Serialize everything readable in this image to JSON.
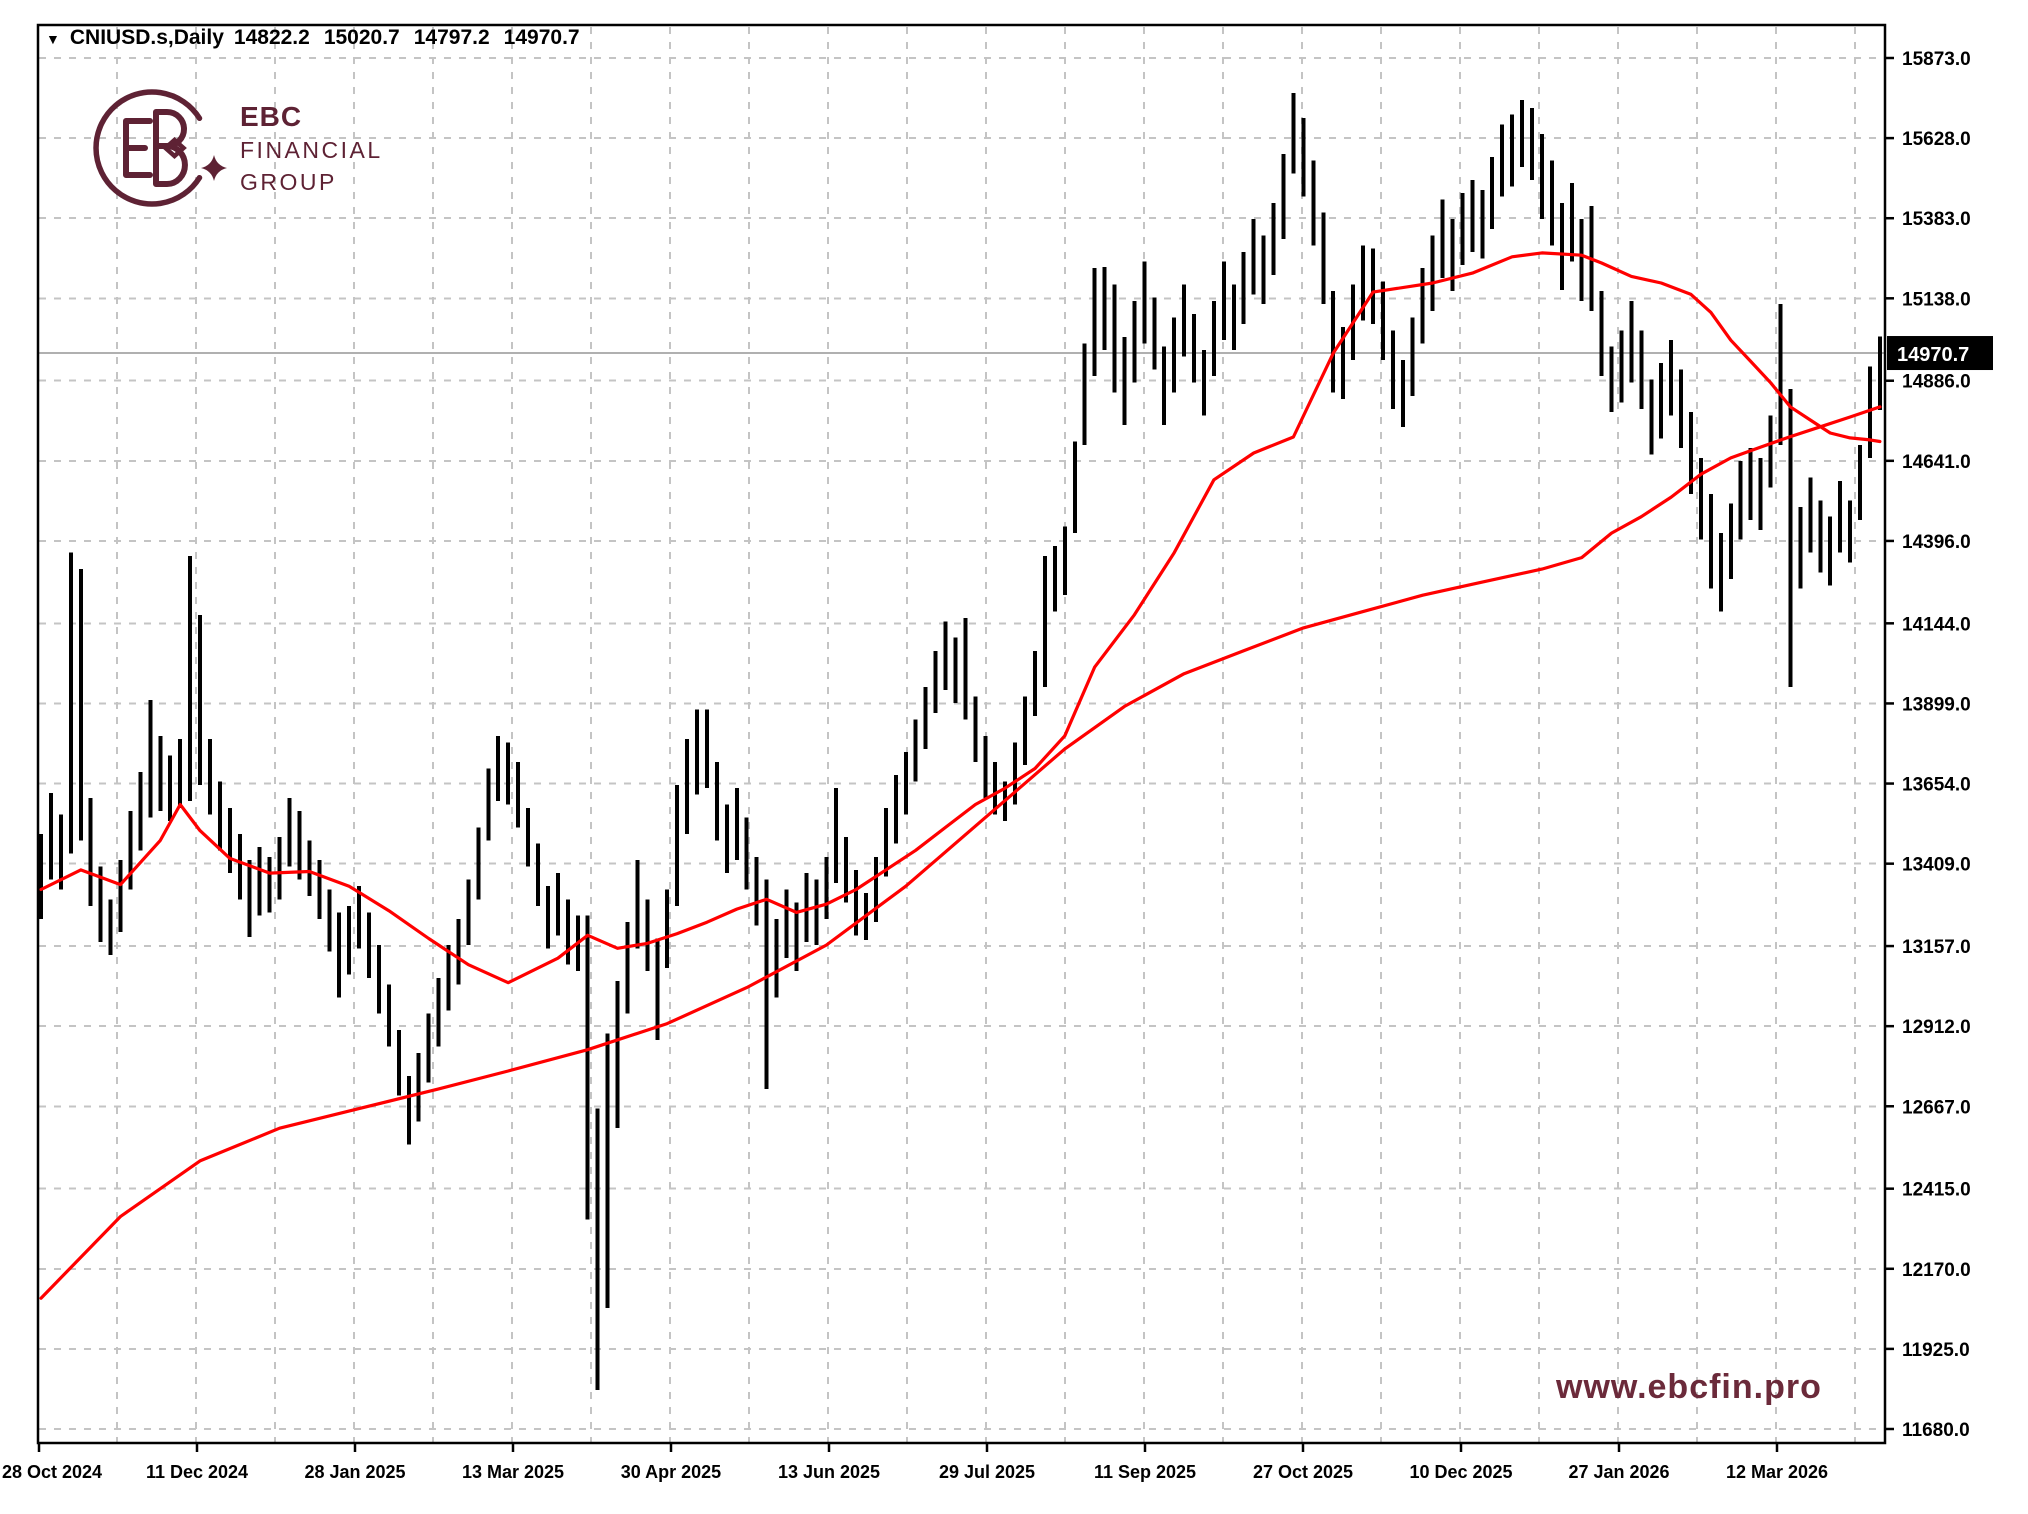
{
  "header": {
    "collapse_icon": "triangle-down",
    "symbol": "CNIUSD.s,Daily",
    "open": "14822.2",
    "high": "15020.7",
    "low": "14797.2",
    "close": "14970.7"
  },
  "logo": {
    "monogram": "EB",
    "line1": "EBC",
    "line2": "FINANCIAL",
    "line3": "GROUP",
    "color": "#5E2234"
  },
  "watermark": {
    "text": "www.ebcfin.pro",
    "color": "#6B2A3A"
  },
  "chart_data": {
    "type": "bar",
    "title": "CNIUSD.s Daily OHLC bar chart with two red moving averages",
    "symbol": "CNIUSD.s",
    "timeframe": "Daily",
    "current_bar": {
      "open": 14822.2,
      "high": 15020.7,
      "low": 14797.2,
      "close": 14970.7
    },
    "current_price": 14970.7,
    "current_price_label": "14970.7",
    "grid": "dashed",
    "legend_position": "none",
    "ylim": [
      11680,
      15873
    ],
    "y_axis": {
      "labels": [
        "15873.0",
        "15628.0",
        "15383.0",
        "15138.0",
        "14886.0",
        "14641.0",
        "14396.0",
        "14144.0",
        "13899.0",
        "13654.0",
        "13409.0",
        "13157.0",
        "12912.0",
        "12667.0",
        "12415.0",
        "12170.0",
        "11925.0",
        "11680.0"
      ]
    },
    "x_axis": {
      "labels": [
        "28 Oct 2024",
        "11 Dec 2024",
        "28 Jan 2025",
        "13 Mar 2025",
        "30 Apr 2025",
        "13 Jun 2025",
        "29 Jul 2025",
        "11 Sep 2025",
        "27 Oct 2025",
        "10 Dec 2025",
        "27 Jan 2026",
        "12 Mar 2026"
      ]
    },
    "bars_high_low": [
      [
        13500,
        13240
      ],
      [
        13625,
        13360
      ],
      [
        13560,
        13330
      ],
      [
        14360,
        13440
      ],
      [
        14310,
        13480
      ],
      [
        13610,
        13280
      ],
      [
        13400,
        13170
      ],
      [
        13300,
        13130
      ],
      [
        13420,
        13200
      ],
      [
        13570,
        13330
      ],
      [
        13690,
        13450
      ],
      [
        13910,
        13550
      ],
      [
        13800,
        13570
      ],
      [
        13740,
        13540
      ],
      [
        13790,
        13580
      ],
      [
        14350,
        13600
      ],
      [
        14170,
        13650
      ],
      [
        13790,
        13560
      ],
      [
        13660,
        13450
      ],
      [
        13580,
        13380
      ],
      [
        13500,
        13300
      ],
      [
        13420,
        13185
      ],
      [
        13460,
        13250
      ],
      [
        13430,
        13260
      ],
      [
        13490,
        13300
      ],
      [
        13610,
        13400
      ],
      [
        13570,
        13360
      ],
      [
        13480,
        13310
      ],
      [
        13420,
        13240
      ],
      [
        13330,
        13140
      ],
      [
        13260,
        13000
      ],
      [
        13280,
        13070
      ],
      [
        13340,
        13150
      ],
      [
        13260,
        13060
      ],
      [
        13160,
        12950
      ],
      [
        13040,
        12850
      ],
      [
        12900,
        12700
      ],
      [
        12760,
        12550
      ],
      [
        12830,
        12620
      ],
      [
        12950,
        12740
      ],
      [
        13060,
        12850
      ],
      [
        13160,
        12960
      ],
      [
        13240,
        13040
      ],
      [
        13360,
        13160
      ],
      [
        13520,
        13300
      ],
      [
        13700,
        13480
      ],
      [
        13800,
        13600
      ],
      [
        13780,
        13590
      ],
      [
        13720,
        13520
      ],
      [
        13580,
        13400
      ],
      [
        13470,
        13280
      ],
      [
        13340,
        13150
      ],
      [
        13380,
        13190
      ],
      [
        13300,
        13100
      ],
      [
        13250,
        13080
      ],
      [
        13250,
        12320
      ],
      [
        12660,
        11800
      ],
      [
        12890,
        12050
      ],
      [
        13050,
        12600
      ],
      [
        13230,
        12950
      ],
      [
        13420,
        13150
      ],
      [
        13300,
        13080
      ],
      [
        13180,
        12870
      ],
      [
        13330,
        13090
      ],
      [
        13650,
        13280
      ],
      [
        13790,
        13500
      ],
      [
        13880,
        13620
      ],
      [
        13880,
        13640
      ],
      [
        13720,
        13480
      ],
      [
        13590,
        13380
      ],
      [
        13640,
        13420
      ],
      [
        13550,
        13330
      ],
      [
        13430,
        13220
      ],
      [
        13360,
        12720
      ],
      [
        13240,
        13000
      ],
      [
        13330,
        13120
      ],
      [
        13290,
        13080
      ],
      [
        13380,
        13170
      ],
      [
        13360,
        13160
      ],
      [
        13430,
        13240
      ],
      [
        13640,
        13350
      ],
      [
        13490,
        13290
      ],
      [
        13390,
        13190
      ],
      [
        13320,
        13175
      ],
      [
        13430,
        13230
      ],
      [
        13580,
        13370
      ],
      [
        13680,
        13470
      ],
      [
        13750,
        13560
      ],
      [
        13850,
        13660
      ],
      [
        13950,
        13760
      ],
      [
        14060,
        13870
      ],
      [
        14150,
        13940
      ],
      [
        14100,
        13900
      ],
      [
        14160,
        13850
      ],
      [
        13920,
        13720
      ],
      [
        13800,
        13610
      ],
      [
        13720,
        13560
      ],
      [
        13660,
        13540
      ],
      [
        13780,
        13590
      ],
      [
        13920,
        13710
      ],
      [
        14060,
        13860
      ],
      [
        14350,
        13950
      ],
      [
        14380,
        14180
      ],
      [
        14440,
        14230
      ],
      [
        14700,
        14420
      ],
      [
        15000,
        14690
      ],
      [
        15230,
        14900
      ],
      [
        15234,
        14980
      ],
      [
        15180,
        14850
      ],
      [
        15020,
        14750
      ],
      [
        15130,
        14880
      ],
      [
        15250,
        15000
      ],
      [
        15140,
        14920
      ],
      [
        14990,
        14750
      ],
      [
        15080,
        14850
      ],
      [
        15180,
        14960
      ],
      [
        15090,
        14880
      ],
      [
        14980,
        14780
      ],
      [
        15130,
        14900
      ],
      [
        15250,
        15010
      ],
      [
        15180,
        14980
      ],
      [
        15280,
        15060
      ],
      [
        15380,
        15150
      ],
      [
        15330,
        15120
      ],
      [
        15430,
        15210
      ],
      [
        15580,
        15320
      ],
      [
        15766,
        15520
      ],
      [
        15690,
        15450
      ],
      [
        15560,
        15300
      ],
      [
        15400,
        15120
      ],
      [
        15160,
        14850
      ],
      [
        15050,
        14830
      ],
      [
        15180,
        14950
      ],
      [
        15300,
        15070
      ],
      [
        15290,
        15060
      ],
      [
        15190,
        14950
      ],
      [
        15040,
        14800
      ],
      [
        14950,
        14745
      ],
      [
        15080,
        14840
      ],
      [
        15230,
        15000
      ],
      [
        15330,
        15100
      ],
      [
        15440,
        15200
      ],
      [
        15380,
        15160
      ],
      [
        15460,
        15240
      ],
      [
        15500,
        15280
      ],
      [
        15470,
        15260
      ],
      [
        15570,
        15350
      ],
      [
        15670,
        15450
      ],
      [
        15700,
        15480
      ],
      [
        15745,
        15540
      ],
      [
        15720,
        15500
      ],
      [
        15640,
        15380
      ],
      [
        15560,
        15300
      ],
      [
        15430,
        15164
      ],
      [
        15490,
        15250
      ],
      [
        15380,
        15130
      ],
      [
        15420,
        15100
      ],
      [
        15160,
        14900
      ],
      [
        14990,
        14790
      ],
      [
        15040,
        14820
      ],
      [
        15130,
        14880
      ],
      [
        15040,
        14800
      ],
      [
        14890,
        14660
      ],
      [
        14940,
        14710
      ],
      [
        15010,
        14780
      ],
      [
        14920,
        14680
      ],
      [
        14790,
        14540
      ],
      [
        14650,
        14400
      ],
      [
        14540,
        14250
      ],
      [
        14420,
        14180
      ],
      [
        14510,
        14280
      ],
      [
        14640,
        14400
      ],
      [
        14680,
        14460
      ],
      [
        14650,
        14430
      ],
      [
        14780,
        14560
      ],
      [
        15120,
        14690
      ],
      [
        14860,
        13950
      ],
      [
        14500,
        14250
      ],
      [
        14590,
        14360
      ],
      [
        14520,
        14300
      ],
      [
        14470,
        14260
      ],
      [
        14580,
        14360
      ],
      [
        14520,
        14330
      ],
      [
        14690,
        14460
      ],
      [
        14930,
        14650
      ],
      [
        15021,
        14797
      ]
    ],
    "ma_fast_waypoints": [
      [
        0,
        13330
      ],
      [
        4,
        13390
      ],
      [
        8,
        13345
      ],
      [
        12,
        13480
      ],
      [
        14,
        13590
      ],
      [
        16,
        13510
      ],
      [
        19,
        13425
      ],
      [
        23,
        13380
      ],
      [
        27,
        13385
      ],
      [
        31,
        13340
      ],
      [
        35,
        13265
      ],
      [
        39,
        13180
      ],
      [
        43,
        13100
      ],
      [
        47,
        13045
      ],
      [
        52,
        13120
      ],
      [
        55,
        13190
      ],
      [
        58,
        13150
      ],
      [
        61,
        13165
      ],
      [
        64,
        13195
      ],
      [
        67,
        13230
      ],
      [
        70,
        13270
      ],
      [
        73,
        13300
      ],
      [
        76,
        13260
      ],
      [
        79,
        13285
      ],
      [
        82,
        13330
      ],
      [
        85,
        13390
      ],
      [
        88,
        13450
      ],
      [
        91,
        13520
      ],
      [
        94,
        13590
      ],
      [
        97,
        13640
      ],
      [
        100,
        13700
      ],
      [
        103,
        13800
      ],
      [
        106,
        14010
      ],
      [
        110,
        14170
      ],
      [
        114,
        14360
      ],
      [
        118,
        14583
      ],
      [
        122,
        14665
      ],
      [
        126,
        14714
      ],
      [
        130,
        14970
      ],
      [
        134,
        15157
      ],
      [
        140,
        15185
      ],
      [
        144,
        15215
      ],
      [
        148,
        15265
      ],
      [
        151,
        15277
      ],
      [
        155,
        15270
      ],
      [
        157,
        15246
      ],
      [
        160,
        15205
      ],
      [
        163,
        15185
      ],
      [
        166,
        15150
      ],
      [
        168,
        15095
      ],
      [
        170,
        15010
      ],
      [
        172,
        14945
      ],
      [
        174,
        14880
      ],
      [
        176,
        14806
      ],
      [
        178,
        14766
      ],
      [
        180,
        14726
      ],
      [
        182,
        14711
      ],
      [
        184,
        14705
      ],
      [
        185,
        14700
      ]
    ],
    "ma_slow_waypoints": [
      [
        0,
        12080
      ],
      [
        8,
        12330
      ],
      [
        16,
        12500
      ],
      [
        24,
        12600
      ],
      [
        32,
        12660
      ],
      [
        40,
        12720
      ],
      [
        47,
        12775
      ],
      [
        55,
        12840
      ],
      [
        63,
        12920
      ],
      [
        71,
        13030
      ],
      [
        79,
        13160
      ],
      [
        87,
        13340
      ],
      [
        95,
        13550
      ],
      [
        103,
        13760
      ],
      [
        109,
        13890
      ],
      [
        115,
        13990
      ],
      [
        121,
        14060
      ],
      [
        127,
        14130
      ],
      [
        133,
        14180
      ],
      [
        139,
        14230
      ],
      [
        145,
        14270
      ],
      [
        151,
        14310
      ],
      [
        155,
        14345
      ],
      [
        158,
        14420
      ],
      [
        161,
        14470
      ],
      [
        164,
        14530
      ],
      [
        167,
        14600
      ],
      [
        170,
        14650
      ],
      [
        173,
        14683
      ],
      [
        176,
        14715
      ],
      [
        179,
        14745
      ],
      [
        182,
        14775
      ],
      [
        185,
        14806
      ]
    ],
    "colors": {
      "bar": "#000000",
      "ma": "#FF0000",
      "grid": "#c4c4c4",
      "frame": "#000000",
      "price_line": "#b0b0b0",
      "badge_bg": "#000000",
      "badge_text": "#ffffff",
      "axis_text": "#000000"
    }
  }
}
